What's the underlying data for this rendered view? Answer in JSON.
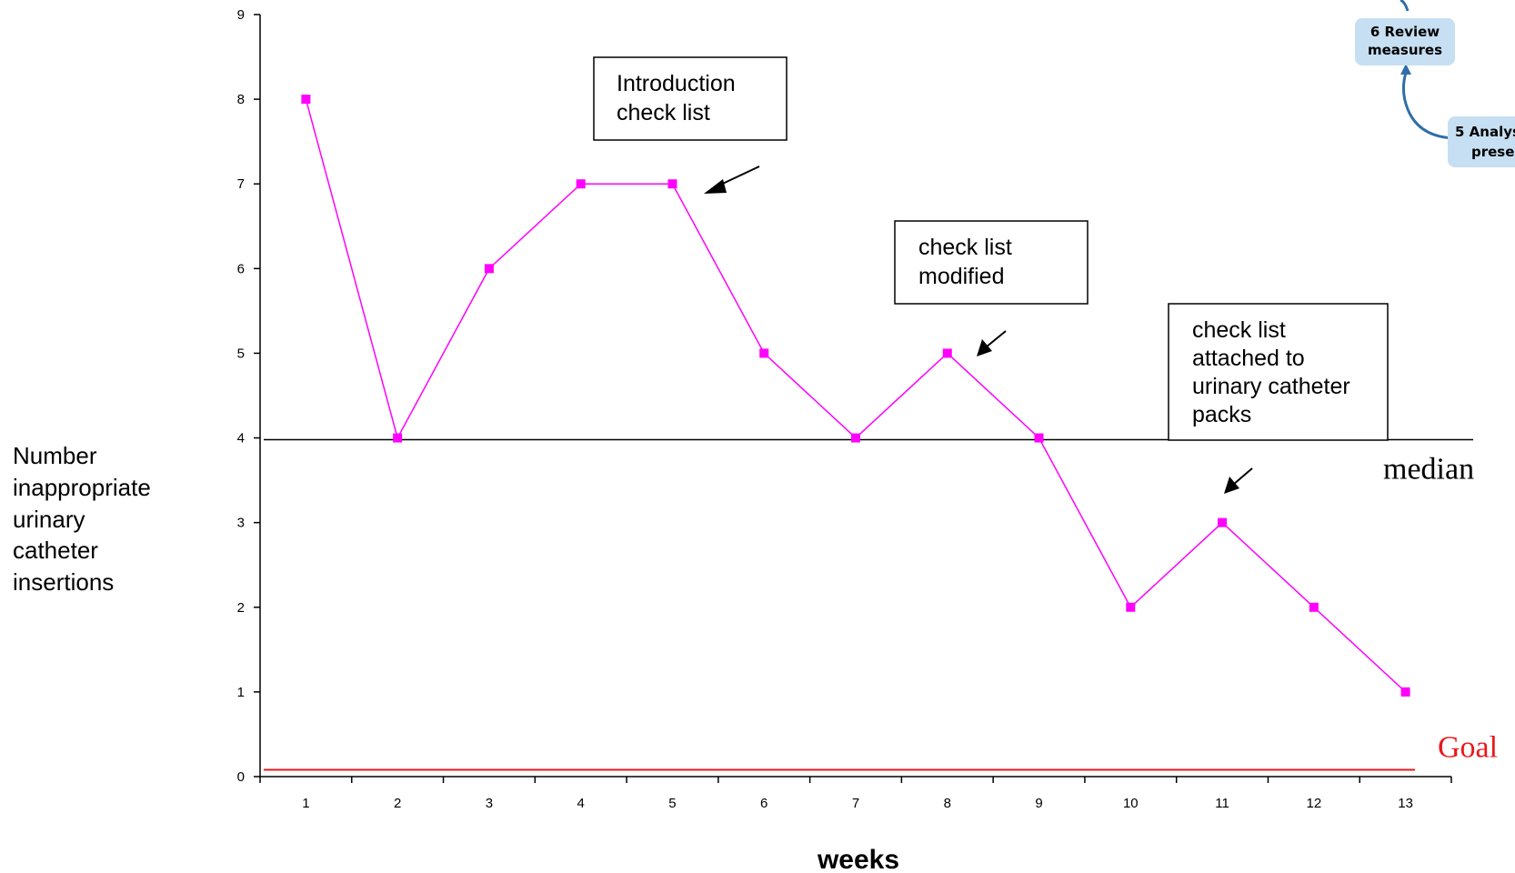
{
  "chart_data": {
    "type": "line",
    "x": [
      1,
      2,
      3,
      4,
      5,
      6,
      7,
      8,
      9,
      10,
      11,
      12,
      13
    ],
    "series": [
      {
        "values": [
          8,
          4,
          6,
          7,
          7,
          5,
          4,
          5,
          4,
          2,
          3,
          2,
          1
        ],
        "color": "#ff00ff"
      }
    ],
    "xlabel": "weeks",
    "ylabel": [
      "Number",
      "inappropriate",
      "urinary",
      "catheter",
      "insertions"
    ],
    "ylim": [
      0,
      9
    ],
    "xlim": [
      0.5,
      13.5
    ],
    "yticks": [
      0,
      1,
      2,
      3,
      4,
      5,
      6,
      7,
      8,
      9
    ],
    "xticks": [
      1,
      2,
      3,
      4,
      5,
      6,
      7,
      8,
      9,
      10,
      11,
      12,
      13
    ],
    "grid": false,
    "reference_lines": [
      {
        "name": "median",
        "y": 4,
        "color": "#000000"
      },
      {
        "name": "Goal",
        "y": 0.08,
        "color": "#e8191e"
      }
    ],
    "annotations": [
      {
        "id": "intro",
        "lines": [
          "Introduction",
          "check list"
        ],
        "points_to_week": 5
      },
      {
        "id": "modified",
        "lines": [
          "check list",
          "modified"
        ],
        "points_to_week": 8
      },
      {
        "id": "attached",
        "lines": [
          "check list",
          "attached to",
          "urinary catheter",
          "packs"
        ],
        "points_to_week": 11
      }
    ]
  },
  "cycle_diagram": {
    "review": [
      "6 Review",
      "measures"
    ],
    "analysis": [
      "5 Analys",
      "prese"
    ],
    "fill": "#c6dff2",
    "arrow_color": "#2f6ea8"
  }
}
